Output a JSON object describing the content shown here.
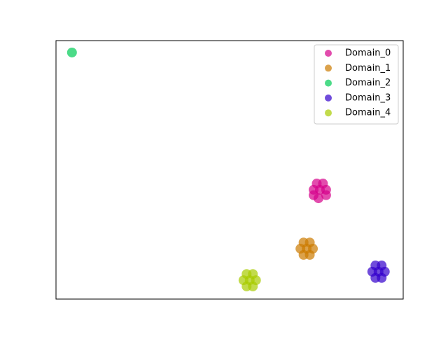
{
  "chart_data": {
    "type": "scatter",
    "xlim": [
      0,
      100
    ],
    "ylim": [
      0,
      100
    ],
    "legend": "upper right",
    "opacity": 0.7,
    "series": [
      {
        "name": "Domain_0",
        "color": "#d6008a",
        "x": [
          76.0,
          77.8,
          74.2,
          76.9,
          75.1,
          77.8,
          74.2,
          75.6
        ],
        "values": [
          42.3,
          42.3,
          42.3,
          44.7,
          44.7,
          40.2,
          40.2,
          39.0
        ]
      },
      {
        "name": "Domain_1",
        "color": "#cc7a00",
        "x": [
          72.2,
          74.0,
          70.4,
          73.1,
          71.3,
          73.1,
          71.3
        ],
        "values": [
          19.5,
          19.5,
          19.5,
          21.9,
          21.9,
          17.1,
          17.1
        ]
      },
      {
        "name": "Domain_2",
        "color": "#00cc55",
        "x": [
          4.6
        ],
        "values": [
          95.4
        ]
      },
      {
        "name": "Domain_3",
        "color": "#3300cc",
        "x": [
          92.9,
          94.7,
          91.1,
          93.8,
          92.0,
          93.8,
          92.0
        ],
        "values": [
          10.6,
          10.6,
          10.6,
          13.0,
          13.0,
          8.2,
          8.2
        ]
      },
      {
        "name": "Domain_4",
        "color": "#a8cc00",
        "x": [
          55.8,
          57.6,
          54.0,
          56.7,
          54.9,
          56.7,
          54.9
        ],
        "values": [
          7.3,
          7.3,
          7.3,
          9.7,
          9.7,
          4.9,
          4.9
        ]
      }
    ]
  }
}
